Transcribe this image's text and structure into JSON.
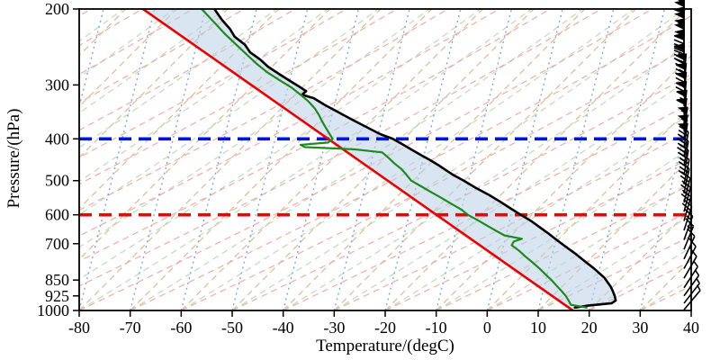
{
  "chart_data": {
    "type": "line",
    "subtype": "skew-t-log-p-sounding",
    "title": "",
    "xlabel": "Temperature/(degC)",
    "ylabel": "Pressure/(hPa)",
    "xlim": [
      -80,
      40
    ],
    "x_ticks": [
      -80,
      -70,
      -60,
      -50,
      -40,
      -30,
      -20,
      -10,
      0,
      10,
      20,
      30,
      40
    ],
    "pressure_range": [
      200,
      1000
    ],
    "pressure_ticks": [
      200,
      300,
      400,
      500,
      600,
      700,
      850,
      925,
      1000
    ],
    "y_scale": "log",
    "note": "series x-values are temperature coordinates read on the skewed bottom axis",
    "series": [
      {
        "name": "parcel-temperature-red",
        "color": "#ee0000",
        "width": 2.6,
        "style": "solid",
        "points": [
          [
            200,
            -67.5
          ],
          [
            1000,
            16.8
          ]
        ]
      },
      {
        "name": "environment-temperature-black",
        "color": "#000000",
        "width": 2.6,
        "style": "solid",
        "points": [
          [
            200,
            -53.5
          ],
          [
            212,
            -52
          ],
          [
            222,
            -50.5
          ],
          [
            232,
            -49.5
          ],
          [
            242,
            -47.5
          ],
          [
            252,
            -46.5
          ],
          [
            262,
            -44.5
          ],
          [
            272,
            -43
          ],
          [
            282,
            -41
          ],
          [
            292,
            -39
          ],
          [
            302,
            -37
          ],
          [
            310,
            -35.5
          ],
          [
            316,
            -36.3
          ],
          [
            322,
            -34
          ],
          [
            334,
            -31.8
          ],
          [
            348,
            -29
          ],
          [
            362,
            -26.3
          ],
          [
            376,
            -23.6
          ],
          [
            390,
            -21
          ],
          [
            400,
            -18.5
          ],
          [
            412,
            -16.6
          ],
          [
            424,
            -14.8
          ],
          [
            436,
            -13
          ],
          [
            448,
            -11.2
          ],
          [
            460,
            -9.6
          ],
          [
            472,
            -8.2
          ],
          [
            484,
            -6.8
          ],
          [
            500,
            -4.6
          ],
          [
            520,
            -2.2
          ],
          [
            540,
            0.4
          ],
          [
            560,
            2.6
          ],
          [
            580,
            4.6
          ],
          [
            600,
            6.6
          ],
          [
            620,
            8.6
          ],
          [
            640,
            10.2
          ],
          [
            660,
            11.8
          ],
          [
            680,
            13.2
          ],
          [
            700,
            14.6
          ],
          [
            720,
            16
          ],
          [
            740,
            17.4
          ],
          [
            760,
            18.6
          ],
          [
            780,
            19.8
          ],
          [
            800,
            21
          ],
          [
            820,
            22
          ],
          [
            840,
            23
          ],
          [
            860,
            23.6
          ],
          [
            880,
            24.2
          ],
          [
            900,
            24.6
          ],
          [
            925,
            25
          ],
          [
            948,
            25.2
          ],
          [
            962,
            24.4
          ],
          [
            975,
            19.5
          ],
          [
            985,
            17.2
          ]
        ]
      },
      {
        "name": "dewpoint-green",
        "color": "#1e8a1e",
        "width": 2.2,
        "style": "solid",
        "points": [
          [
            200,
            -56
          ],
          [
            215,
            -53.5
          ],
          [
            228,
            -51.5
          ],
          [
            242,
            -49.2
          ],
          [
            256,
            -47
          ],
          [
            268,
            -45.2
          ],
          [
            280,
            -43.2
          ],
          [
            292,
            -40.8
          ],
          [
            304,
            -38.4
          ],
          [
            316,
            -36.6
          ],
          [
            328,
            -35
          ],
          [
            340,
            -33.8
          ],
          [
            352,
            -33
          ],
          [
            364,
            -32.4
          ],
          [
            376,
            -31.7
          ],
          [
            388,
            -31
          ],
          [
            400,
            -30.3
          ],
          [
            408,
            -31.2
          ],
          [
            413,
            -36.6
          ],
          [
            418,
            -35.8
          ],
          [
            423,
            -26
          ],
          [
            430,
            -20.6
          ],
          [
            442,
            -19.4
          ],
          [
            456,
            -18.2
          ],
          [
            470,
            -16.8
          ],
          [
            485,
            -15.8
          ],
          [
            500,
            -14.9
          ],
          [
            515,
            -13
          ],
          [
            530,
            -11.2
          ],
          [
            548,
            -9
          ],
          [
            566,
            -7
          ],
          [
            584,
            -5
          ],
          [
            600,
            -3.8
          ],
          [
            618,
            -1.8
          ],
          [
            636,
            0
          ],
          [
            654,
            1.8
          ],
          [
            670,
            3.4
          ],
          [
            682,
            6.8
          ],
          [
            692,
            5.2
          ],
          [
            706,
            4.8
          ],
          [
            726,
            6.2
          ],
          [
            748,
            7.4
          ],
          [
            772,
            8.8
          ],
          [
            798,
            10.2
          ],
          [
            824,
            11.4
          ],
          [
            850,
            12.6
          ],
          [
            876,
            13.6
          ],
          [
            902,
            14.6
          ],
          [
            925,
            15.4
          ],
          [
            950,
            16
          ],
          [
            970,
            16.4
          ],
          [
            985,
            19.5
          ]
        ]
      }
    ],
    "shaded_area": {
      "between": [
        "parcel-temperature-red",
        "environment-temperature-black"
      ],
      "color": "#b9d2e8",
      "opacity": 0.55
    },
    "reference_lines": [
      {
        "name": "blue-dashed-line",
        "pressure": 400,
        "color": "#0012e8",
        "style": "dashed",
        "width": 3.6
      },
      {
        "name": "red-dashed-line",
        "pressure": 600,
        "color": "#ee0404",
        "style": "dashed",
        "width": 3.6
      }
    ],
    "background": {
      "families": [
        {
          "name": "isotherms",
          "color": "#d6bb8f",
          "dash": "7 5",
          "slope": 1.0,
          "step": 10,
          "width": 1.3,
          "curve": 0
        },
        {
          "name": "dry-adiabats",
          "color": "#bcd9b7",
          "dash": "7 5",
          "slope": 1.5,
          "step": 10,
          "width": 1.3,
          "curve": 0.07
        },
        {
          "name": "moist-adiabats",
          "color": "#f2a8a2",
          "dash": "7 5",
          "slope": 1.9,
          "step": 10,
          "width": 1.3,
          "curve": 0.1
        },
        {
          "name": "mixing-ratio",
          "color": "#6f9fd8",
          "dash": "2 4",
          "slope": 0.25,
          "step": 10,
          "width": 1.4,
          "curve": 0
        }
      ]
    },
    "wind_barbs": {
      "color": "#000000",
      "unit": "kt-estimated",
      "items": [
        [
          205,
          115,
          0
        ],
        [
          218,
          110,
          0
        ],
        [
          232,
          105,
          0
        ],
        [
          246,
          100,
          0
        ],
        [
          260,
          95,
          0
        ],
        [
          275,
          90,
          0
        ],
        [
          290,
          85,
          5
        ],
        [
          305,
          80,
          5
        ],
        [
          320,
          75,
          5
        ],
        [
          336,
          70,
          5
        ],
        [
          352,
          65,
          6
        ],
        [
          368,
          60,
          6
        ],
        [
          385,
          55,
          8
        ],
        [
          402,
          55,
          8
        ],
        [
          420,
          50,
          8
        ],
        [
          440,
          45,
          10
        ],
        [
          462,
          40,
          10
        ],
        [
          485,
          35,
          10
        ],
        [
          510,
          30,
          12
        ],
        [
          535,
          30,
          12
        ],
        [
          562,
          25,
          14
        ],
        [
          590,
          25,
          15
        ],
        [
          620,
          20,
          16
        ],
        [
          652,
          20,
          18
        ],
        [
          686,
          15,
          20
        ],
        [
          722,
          15,
          22
        ],
        [
          760,
          10,
          25
        ],
        [
          800,
          10,
          28
        ],
        [
          842,
          10,
          30
        ],
        [
          886,
          5,
          33
        ],
        [
          925,
          5,
          36
        ],
        [
          962,
          5,
          38
        ],
        [
          996,
          5,
          40
        ]
      ]
    }
  }
}
